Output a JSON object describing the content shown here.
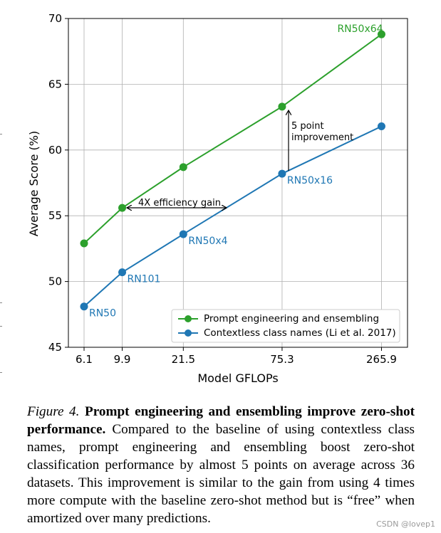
{
  "chart_data": {
    "type": "line",
    "xlabel": "Model GFLOPs",
    "ylabel": "Average Score (%)",
    "x_scale": "log",
    "x_ticks": [
      "6.1",
      "9.9",
      "21.5",
      "75.3",
      "265.9"
    ],
    "x_values": [
      6.1,
      9.9,
      21.5,
      75.3,
      265.9
    ],
    "ylim": [
      45,
      70
    ],
    "y_ticks": [
      "45",
      "50",
      "55",
      "60",
      "65",
      "70"
    ],
    "y_tick_values": [
      45,
      50,
      55,
      60,
      65,
      70
    ],
    "grid": true,
    "legend_position": "lower-right",
    "series": [
      {
        "name": "Prompt engineering and ensembling",
        "color": "#2ca02c",
        "values": [
          52.9,
          55.6,
          58.7,
          63.3,
          68.8
        ],
        "point_labels": [
          "",
          "",
          "",
          "",
          "RN50x64"
        ]
      },
      {
        "name": "Contextless class names (Li et al. 2017)",
        "color": "#1f77b4",
        "values": [
          48.1,
          50.7,
          53.6,
          58.2,
          61.8
        ],
        "point_labels": [
          "RN50",
          "RN101",
          "RN50x4",
          "RN50x16",
          ""
        ]
      }
    ],
    "annotations": {
      "efficiency": "4X efficiency gain",
      "improvement_line1": "5 point",
      "improvement_line2": "improvement"
    }
  },
  "caption": {
    "figure_label": "Figure 4.",
    "bold_text": "Prompt engineering and ensembling improve zero-shot performance.",
    "body_text": "Compared to the baseline of using contextless class names, prompt engineering and ensembling boost zero-shot classification performance by almost 5 points on average across 36 datasets. This improvement is similar to the gain from using 4 times more compute with the baseline zero-shot method but is “free” when amortized over many predictions."
  },
  "watermark": "CSDN @lovep1"
}
